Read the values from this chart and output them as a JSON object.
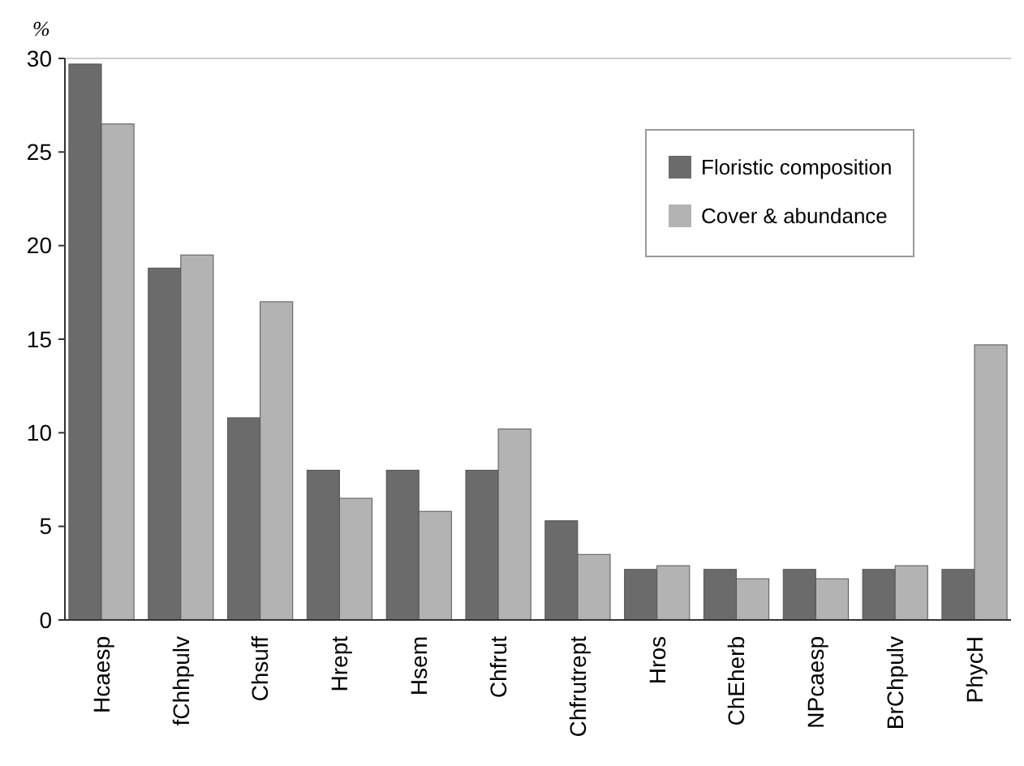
{
  "chart_data": {
    "type": "bar",
    "ylabel": "%",
    "categories": [
      "Hcaesp",
      "fChhpulv",
      "Chsuff",
      "Hrept",
      "Hsem",
      "Chfrut",
      "Chfrutrept",
      "Hros",
      "ChEherb",
      "NPcaesp",
      "BrChpulv",
      "PhycH"
    ],
    "series": [
      {
        "name": "Floristic composition",
        "color": "#6b6b6b",
        "values": [
          29.7,
          18.8,
          10.8,
          8,
          8,
          8,
          5.3,
          2.7,
          2.7,
          2.7,
          2.7,
          2.7
        ]
      },
      {
        "name": "Cover & abundance",
        "color": "#b3b3b3",
        "values": [
          26.5,
          19.5,
          17,
          6.5,
          5.8,
          10.2,
          3.5,
          2.9,
          2.2,
          2.2,
          2.9,
          14.7
        ]
      }
    ],
    "ylim": [
      0,
      30
    ],
    "yticks": [
      0,
      5,
      10,
      15,
      20,
      25,
      30
    ],
    "grid": false,
    "legend": "top right"
  }
}
